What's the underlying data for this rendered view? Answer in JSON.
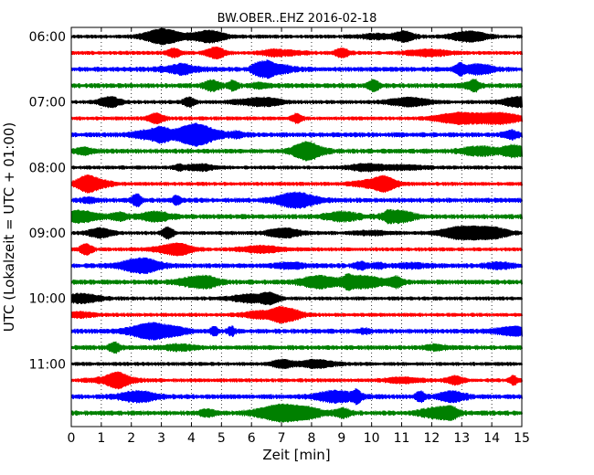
{
  "chart_data": {
    "type": "line",
    "title": "BW.OBER..EHZ 2016-02-18",
    "xlabel": "Zeit  [min]",
    "ylabel": "UTC (Lokalzeit = UTC + 01:00)",
    "xlim": [
      0,
      15
    ],
    "x_ticks": [
      "0",
      "1",
      "2",
      "3",
      "4",
      "5",
      "6",
      "7",
      "8",
      "9",
      "10",
      "11",
      "12",
      "13",
      "14",
      "15"
    ],
    "y_ticks": [
      "06:00",
      "07:00",
      "08:00",
      "09:00",
      "10:00",
      "11:00"
    ],
    "grid": "vertical dotted",
    "trace_colors": [
      "#000000",
      "#ff0000",
      "#0000ff",
      "#008000"
    ],
    "traces": [
      {
        "start": "06:00",
        "color": "#000000"
      },
      {
        "start": "06:15",
        "color": "#ff0000"
      },
      {
        "start": "06:30",
        "color": "#0000ff"
      },
      {
        "start": "06:45",
        "color": "#008000"
      },
      {
        "start": "07:00",
        "color": "#000000"
      },
      {
        "start": "07:15",
        "color": "#ff0000"
      },
      {
        "start": "07:30",
        "color": "#0000ff"
      },
      {
        "start": "07:45",
        "color": "#008000"
      },
      {
        "start": "08:00",
        "color": "#000000"
      },
      {
        "start": "08:15",
        "color": "#ff0000"
      },
      {
        "start": "08:30",
        "color": "#0000ff"
      },
      {
        "start": "08:45",
        "color": "#008000"
      },
      {
        "start": "09:00",
        "color": "#000000"
      },
      {
        "start": "09:15",
        "color": "#ff0000"
      },
      {
        "start": "09:30",
        "color": "#0000ff"
      },
      {
        "start": "09:45",
        "color": "#008000"
      },
      {
        "start": "10:00",
        "color": "#000000"
      },
      {
        "start": "10:15",
        "color": "#ff0000"
      },
      {
        "start": "10:30",
        "color": "#0000ff"
      },
      {
        "start": "10:45",
        "color": "#008000"
      },
      {
        "start": "11:00",
        "color": "#000000"
      },
      {
        "start": "11:15",
        "color": "#ff0000"
      },
      {
        "start": "11:30",
        "color": "#0000ff"
      },
      {
        "start": "11:45",
        "color": "#008000"
      }
    ]
  }
}
